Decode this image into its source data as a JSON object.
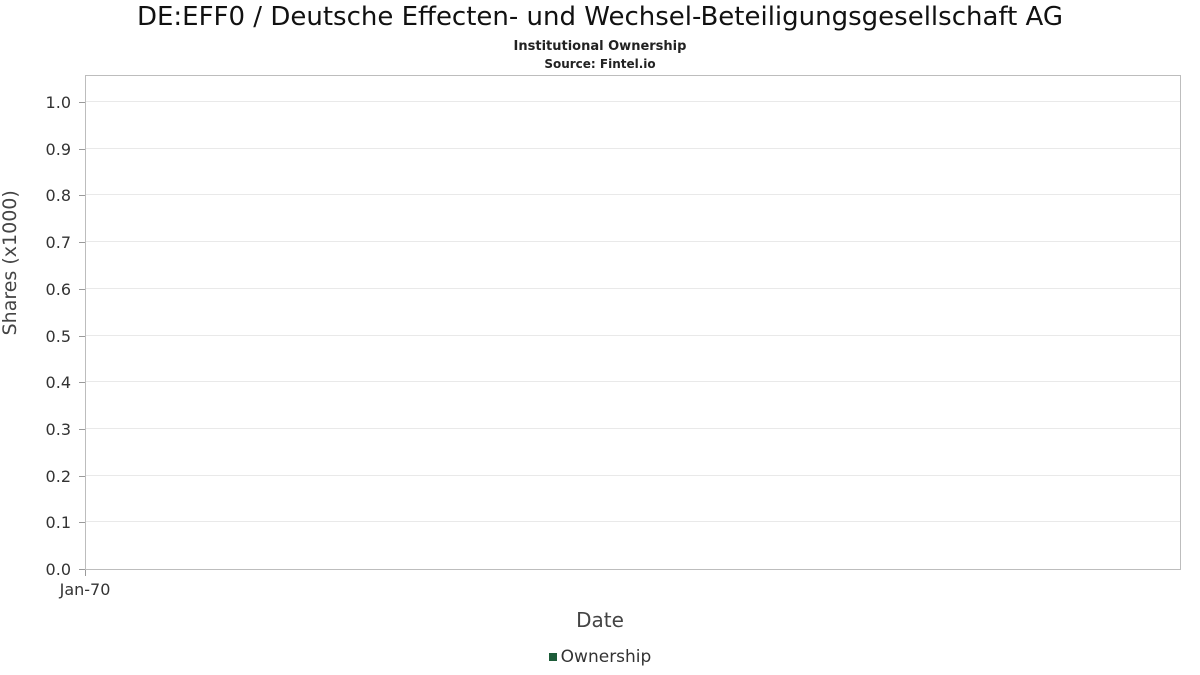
{
  "header": {
    "title": "DE:EFF0 / Deutsche Effecten- und Wechsel-Beteiligungsgesellschaft AG",
    "subtitle": "Institutional Ownership",
    "source": "Source: Fintel.io"
  },
  "chart_data": {
    "type": "line",
    "title": "DE:EFF0 / Deutsche Effecten- und Wechsel-Beteiligungsgesellschaft AG",
    "subtitle": "Institutional Ownership",
    "source": "Source: Fintel.io",
    "xlabel": "Date",
    "ylabel": "Shares (x1000)",
    "ylim": [
      0.0,
      1.0
    ],
    "y_ticks": [
      0.0,
      0.1,
      0.2,
      0.3,
      0.4,
      0.5,
      0.6,
      0.7,
      0.8,
      0.9,
      1.0
    ],
    "x_ticks": [
      "Jan-70"
    ],
    "grid": "horizontal",
    "legend_position": "bottom",
    "series": [
      {
        "name": "Ownership",
        "color": "#1d5c39",
        "x": [],
        "values": []
      }
    ]
  }
}
